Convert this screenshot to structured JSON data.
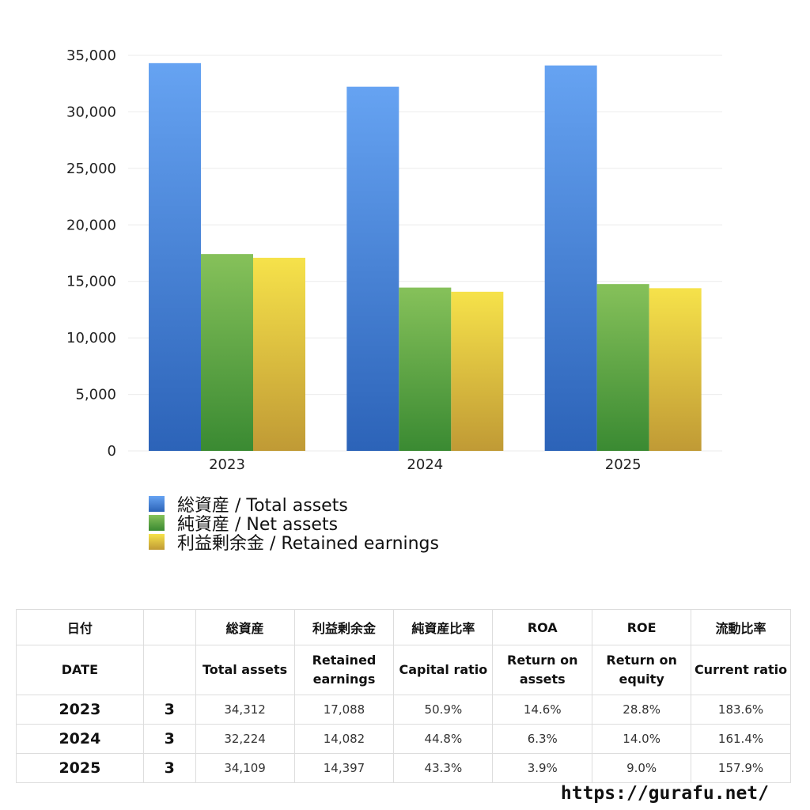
{
  "chart_data": {
    "type": "bar",
    "categories": [
      "2023",
      "2024",
      "2025"
    ],
    "series": [
      {
        "name": "総資産 / Total assets",
        "values": [
          34312,
          32224,
          34109
        ],
        "color_top": "#66a3f2",
        "color_bottom": "#2c63b8"
      },
      {
        "name": "純資産 / Net assets",
        "values": [
          17420,
          14450,
          14760
        ],
        "color_top": "#86c15a",
        "color_bottom": "#3a8a32"
      },
      {
        "name": "利益剰余金 / Retained earnings",
        "values": [
          17088,
          14082,
          14397
        ],
        "color_top": "#f6e24a",
        "color_bottom": "#c09a35"
      }
    ],
    "ylim": [
      0,
      35000
    ],
    "yticks": [
      "0",
      "5,000",
      "10,000",
      "15,000",
      "20,000",
      "25,000",
      "30,000",
      "35,000"
    ],
    "ytick_values": [
      0,
      5000,
      10000,
      15000,
      20000,
      25000,
      30000,
      35000
    ],
    "grid": true,
    "legend_position": "bottom-left"
  },
  "table": {
    "header_jp": [
      "日付",
      "",
      "総資産",
      "利益剰余金",
      "純資産比率",
      "ROA",
      "ROE",
      "流動比率"
    ],
    "header_en": [
      [
        "DATE"
      ],
      [
        ""
      ],
      [
        "Total assets"
      ],
      [
        "Retained",
        "earnings"
      ],
      [
        "Capital ratio"
      ],
      [
        "Return on",
        "assets"
      ],
      [
        "Return on",
        "equity"
      ],
      [
        "Current ratio"
      ]
    ],
    "rows": [
      [
        "2023",
        "3",
        "34,312",
        "17,088",
        "50.9%",
        "14.6%",
        "28.8%",
        "183.6%"
      ],
      [
        "2024",
        "3",
        "32,224",
        "14,082",
        "44.8%",
        "6.3%",
        "14.0%",
        "161.4%"
      ],
      [
        "2025",
        "3",
        "34,109",
        "14,397",
        "43.3%",
        "3.9%",
        "9.0%",
        "157.9%"
      ]
    ]
  },
  "footer": {
    "url": "https://gurafu.net/"
  }
}
